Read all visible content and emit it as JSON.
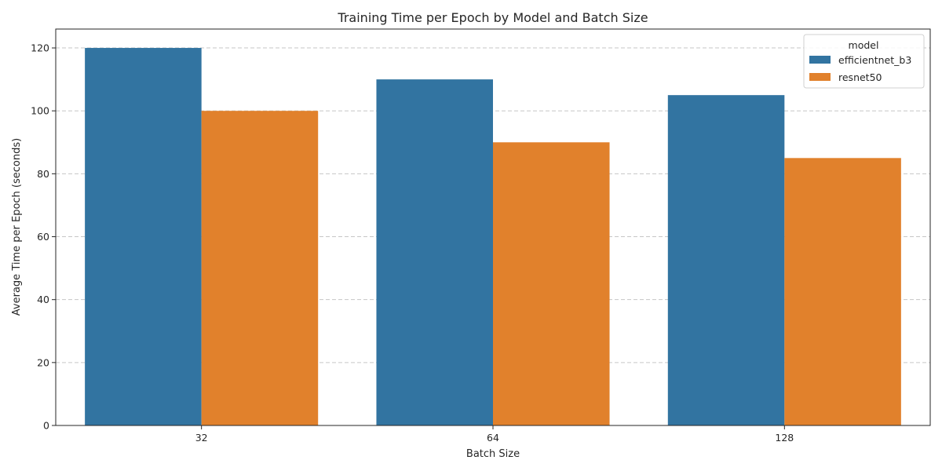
{
  "chart_data": {
    "type": "bar",
    "title": "Training Time per Epoch by Model and Batch Size",
    "xlabel": "Batch Size",
    "ylabel": "Average Time per Epoch (seconds)",
    "categories": [
      "32",
      "64",
      "128"
    ],
    "series": [
      {
        "name": "efficientnet_b3",
        "color": "#3274a1",
        "values": [
          120,
          110,
          105
        ]
      },
      {
        "name": "resnet50",
        "color": "#e1812c",
        "values": [
          100,
          90,
          85
        ]
      }
    ],
    "ylim": [
      0,
      126
    ],
    "yticks": [
      0,
      20,
      40,
      60,
      80,
      100,
      120
    ],
    "grid": true,
    "legend": {
      "title": "model",
      "position": "top-right"
    }
  }
}
